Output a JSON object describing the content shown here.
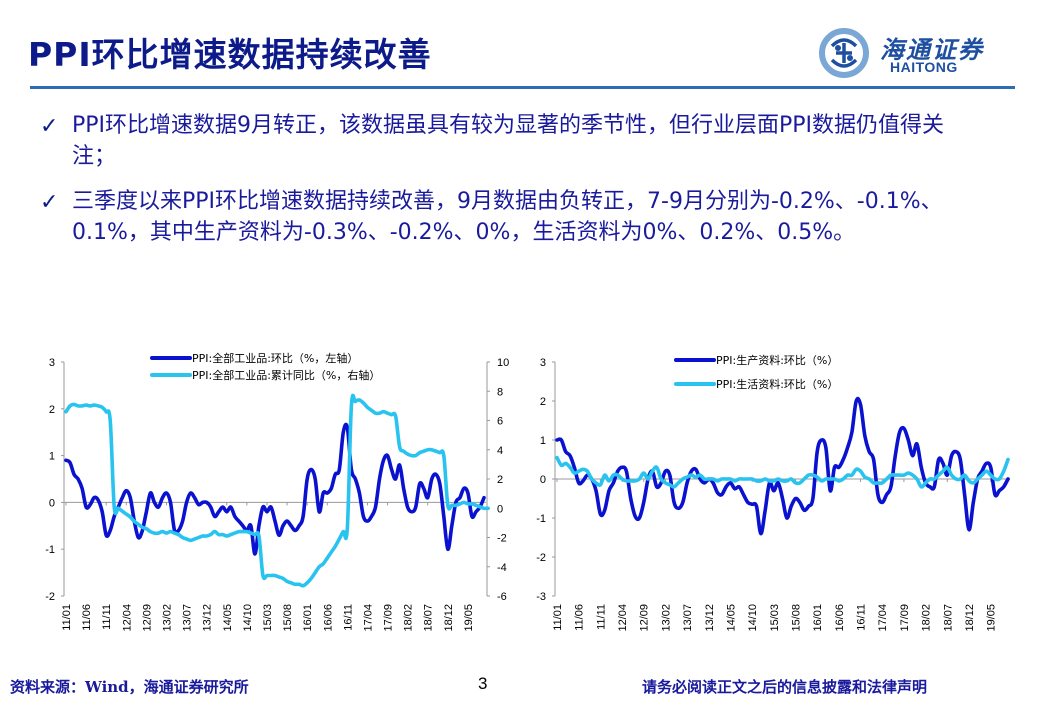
{
  "header": {
    "title": "PPI环比增速数据持续改善",
    "logo_cn": "海通证券",
    "logo_en": "HAITONG"
  },
  "bullets": [
    {
      "icon": "check-icon",
      "text": "PPI环比增速数据9月转正，该数据虽具有较为显著的季节性，但行业层面PPI数据仍值得关注；"
    },
    {
      "icon": "check-icon",
      "text": "三季度以来PPI环比增速数据持续改善，9月数据由负转正，7-9月分别为-0.2%、-0.1%、0.1%，其中生产资料为-0.3%、-0.2%、0%，生活资料为0%、0.2%、0.5%。"
    }
  ],
  "footer": {
    "source": "资料来源：Wind，海通证券研究所",
    "page": "3",
    "disclaimer": "请务必阅读正文之后的信息披露和法律声明"
  },
  "chart_data": [
    {
      "type": "line",
      "title": "",
      "xlabel": "",
      "ylabel": "",
      "x_start": "2011-01",
      "x_end": "2019-09",
      "x_tick_labels": [
        "11/01",
        "11/06",
        "11/11",
        "12/04",
        "12/09",
        "13/02",
        "13/07",
        "13/12",
        "14/05",
        "14/10",
        "15/03",
        "15/08",
        "16/01",
        "16/06",
        "16/11",
        "17/04",
        "17/09",
        "18/02",
        "18/07",
        "18/12",
        "19/05"
      ],
      "ylim_left": [
        -2,
        3
      ],
      "yticks_left": [
        3,
        2,
        1,
        0,
        -1,
        -2
      ],
      "ylim_right": [
        -6,
        10
      ],
      "yticks_right": [
        10,
        8,
        6,
        4,
        2,
        0,
        -2,
        -4,
        -6
      ],
      "legend_position": "top-center",
      "grid": false,
      "series": [
        {
          "name": "PPI:全部工业品:环比（%，左轴）",
          "axis": "left",
          "color": "#0a12d0",
          "values": [
            0.9,
            0.85,
            0.6,
            0.5,
            0.3,
            -0.1,
            -0.05,
            0.1,
            0.05,
            -0.2,
            -0.7,
            -0.6,
            -0.3,
            -0.1,
            0.1,
            0.25,
            0.1,
            -0.4,
            -0.75,
            -0.6,
            -0.2,
            0.2,
            0.0,
            -0.1,
            0.1,
            0.2,
            0.0,
            -0.6,
            -0.6,
            -0.4,
            0.0,
            0.2,
            0.1,
            -0.05,
            0.0,
            0.0,
            -0.1,
            -0.3,
            -0.2,
            -0.1,
            -0.2,
            -0.1,
            -0.3,
            -0.4,
            -0.5,
            -0.6,
            -0.5,
            -1.1,
            -0.5,
            -0.1,
            -0.2,
            -0.1,
            -0.4,
            -0.7,
            -0.5,
            -0.4,
            -0.5,
            -0.6,
            -0.5,
            -0.3,
            0.5,
            0.7,
            0.5,
            -0.2,
            0.2,
            0.2,
            0.3,
            0.6,
            0.7,
            1.5,
            1.6,
            0.7,
            0.5,
            0.2,
            -0.3,
            -0.4,
            -0.3,
            -0.1,
            0.5,
            0.9,
            1.0,
            0.7,
            0.5,
            0.8,
            0.3,
            -0.1,
            -0.2,
            -0.1,
            0.4,
            0.3,
            0.1,
            0.5,
            0.6,
            0.4,
            -0.3,
            -1.0,
            -0.5,
            0.0,
            0.1,
            0.3,
            0.2,
            -0.3,
            -0.2,
            -0.1,
            0.1
          ]
        },
        {
          "name": "PPI:全部工业品:累计同比（%，右轴）",
          "axis": "right",
          "color": "#29c3f0",
          "values": [
            6.6,
            7.0,
            7.1,
            7.0,
            7.0,
            7.05,
            7.0,
            7.05,
            7.0,
            6.9,
            6.6,
            6.0,
            0.1,
            0.0,
            -0.2,
            -0.4,
            -0.6,
            -0.9,
            -1.1,
            -1.3,
            -1.4,
            -1.6,
            -1.7,
            -1.7,
            -1.6,
            -1.7,
            -1.6,
            -1.7,
            -1.8,
            -2.0,
            -2.1,
            -2.2,
            -2.1,
            -2.0,
            -1.9,
            -1.9,
            -1.8,
            -1.6,
            -1.8,
            -1.8,
            -1.9,
            -1.8,
            -1.7,
            -1.6,
            -1.6,
            -1.6,
            -1.7,
            -1.8,
            -1.9,
            -4.6,
            -4.6,
            -4.6,
            -4.6,
            -4.7,
            -4.8,
            -5.0,
            -5.1,
            -5.2,
            -5.2,
            -5.3,
            -5.1,
            -4.8,
            -4.4,
            -4.0,
            -3.8,
            -3.4,
            -3.0,
            -2.6,
            -2.1,
            -1.6,
            -1.4,
            7.0,
            7.3,
            7.4,
            7.2,
            6.9,
            6.7,
            6.5,
            6.5,
            6.6,
            6.5,
            6.4,
            6.3,
            4.2,
            3.9,
            3.7,
            3.6,
            3.6,
            3.8,
            3.9,
            4.0,
            4.0,
            3.9,
            3.8,
            3.6,
            0.2,
            0.2,
            0.2,
            0.3,
            0.4,
            0.3,
            0.3,
            0.2,
            0.1,
            0.0,
            0.0
          ]
        }
      ]
    },
    {
      "type": "line",
      "title": "",
      "xlabel": "",
      "ylabel": "",
      "x_start": "2011-01",
      "x_end": "2019-09",
      "x_tick_labels": [
        "11/01",
        "11/06",
        "11/11",
        "12/04",
        "12/09",
        "13/02",
        "13/07",
        "13/12",
        "14/05",
        "14/10",
        "15/03",
        "15/08",
        "16/01",
        "16/06",
        "16/11",
        "17/04",
        "17/09",
        "18/02",
        "18/07",
        "18/12",
        "19/05"
      ],
      "ylim": [
        -3,
        3
      ],
      "yticks": [
        3,
        2,
        1,
        0,
        -1,
        -2,
        -3
      ],
      "legend_position": "top-center",
      "grid": false,
      "series": [
        {
          "name": "PPI:生产资料:环比（%）",
          "color": "#0a12d0",
          "values": [
            1.0,
            1.0,
            0.7,
            0.6,
            0.3,
            -0.1,
            -0.05,
            0.1,
            0.0,
            -0.3,
            -0.9,
            -0.8,
            -0.3,
            -0.1,
            0.2,
            0.3,
            0.2,
            -0.5,
            -0.95,
            -1.0,
            -0.6,
            0.0,
            0.2,
            -0.2,
            -0.1,
            0.2,
            0.1,
            -0.6,
            -0.75,
            -0.6,
            -0.1,
            0.2,
            0.25,
            0.0,
            -0.1,
            0.0,
            -0.1,
            -0.35,
            -0.4,
            -0.2,
            -0.1,
            -0.25,
            -0.2,
            -0.4,
            -0.6,
            -0.65,
            -0.7,
            -1.4,
            -0.8,
            -0.1,
            -0.3,
            -0.1,
            -0.5,
            -1.0,
            -0.7,
            -0.5,
            -0.6,
            -0.8,
            -0.7,
            -0.5,
            0.7,
            1.0,
            0.8,
            -0.3,
            0.3,
            0.3,
            0.5,
            0.8,
            1.2,
            2.0,
            1.9,
            1.1,
            0.7,
            0.5,
            -0.4,
            -0.6,
            -0.4,
            -0.2,
            0.6,
            1.2,
            1.3,
            1.0,
            0.6,
            0.9,
            0.3,
            -0.1,
            -0.2,
            -0.2,
            0.5,
            0.4,
            0.1,
            0.6,
            0.7,
            0.5,
            -0.4,
            -1.3,
            -0.6,
            0.0,
            0.2,
            0.4,
            0.3,
            -0.4,
            -0.3,
            -0.2,
            0.0
          ]
        },
        {
          "name": "PPI:生活资料:环比（%）",
          "color": "#29c3f0",
          "values": [
            0.55,
            0.35,
            0.4,
            0.3,
            0.15,
            0.2,
            0.25,
            0.2,
            0.0,
            -0.1,
            -0.15,
            0.1,
            -0.05,
            0.1,
            0.1,
            0.0,
            -0.05,
            -0.05,
            -0.05,
            0.0,
            0.15,
            0.0,
            0.2,
            0.3,
            0.0,
            -0.1,
            -0.15,
            -0.2,
            -0.1,
            0.0,
            0.05,
            0.1,
            0.05,
            0.1,
            0.0,
            0.0,
            0.0,
            -0.05,
            0.0,
            0.0,
            0.0,
            -0.05,
            0.0,
            0.0,
            0.0,
            0.0,
            -0.05,
            -0.05,
            0.0,
            -0.05,
            -0.05,
            0.0,
            -0.05,
            -0.05,
            0.0,
            -0.1,
            -0.1,
            0.0,
            0.1,
            0.1,
            0.05,
            -0.05,
            0.0,
            0.0,
            0.0,
            -0.05,
            0.0,
            0.1,
            0.1,
            0.25,
            0.2,
            0.05,
            0.0,
            -0.1,
            -0.1,
            -0.1,
            0.0,
            0.1,
            0.1,
            0.1,
            0.1,
            0.15,
            0.1,
            0.0,
            -0.2,
            -0.1,
            0.0,
            0.0,
            0.1,
            0.2,
            0.3,
            0.1,
            0.0,
            0.0,
            0.1,
            -0.05,
            -0.1,
            0.0,
            0.1,
            0.2,
            0.1,
            0.0,
            0.0,
            0.2,
            0.5
          ]
        }
      ]
    }
  ]
}
